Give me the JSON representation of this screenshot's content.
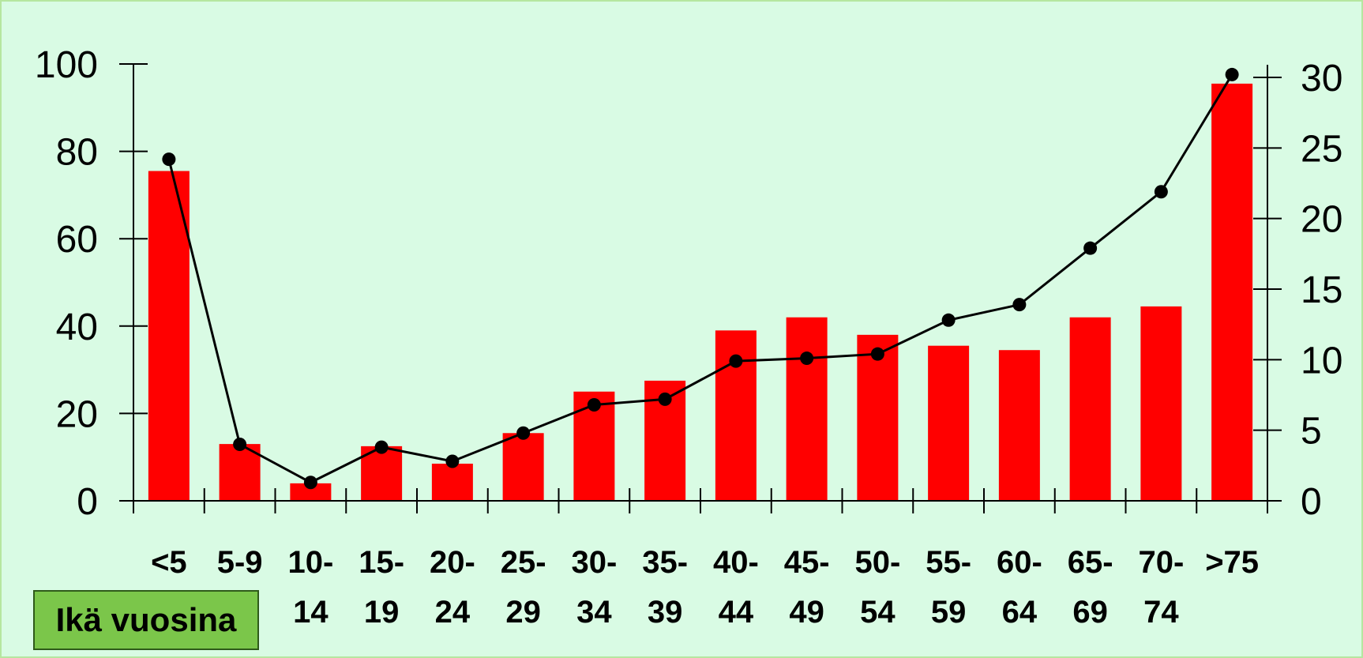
{
  "chart_data": {
    "type": "bar",
    "categories": [
      "<5",
      "5-9",
      "10-14",
      "15-19",
      "20-24",
      "25-29",
      "30-34",
      "35-39",
      "40-44",
      "45-49",
      "50-54",
      "55-59",
      "60-64",
      "65-69",
      "70-74",
      ">75"
    ],
    "category_labels": [
      [
        "<5",
        ""
      ],
      [
        "5-9",
        ""
      ],
      [
        "10-",
        "14"
      ],
      [
        "15-",
        "19"
      ],
      [
        "20-",
        "24"
      ],
      [
        "25-",
        "29"
      ],
      [
        "30-",
        "34"
      ],
      [
        "35-",
        "39"
      ],
      [
        "40-",
        "44"
      ],
      [
        "45-",
        "49"
      ],
      [
        "50-",
        "54"
      ],
      [
        "55-",
        "59"
      ],
      [
        "60-",
        "64"
      ],
      [
        "65-",
        "69"
      ],
      [
        "70-",
        "74"
      ],
      [
        ">75",
        ""
      ]
    ],
    "series": [
      {
        "type": "bar",
        "axis": "left",
        "color": "#ff0000",
        "values": [
          75.5,
          13,
          4,
          12.5,
          8.5,
          15.5,
          25,
          27.5,
          39,
          42,
          38,
          35.5,
          34.5,
          42,
          44.5,
          95.5
        ]
      },
      {
        "type": "line",
        "axis": "right",
        "color": "#000000",
        "values": [
          24.2,
          4,
          1.3,
          3.8,
          2.8,
          4.8,
          6.8,
          7.2,
          9.9,
          10.1,
          10.4,
          12.8,
          13.9,
          17.9,
          21.9,
          30.2
        ]
      }
    ],
    "yticks_left": [
      "0",
      "20",
      "40",
      "60",
      "80",
      "100"
    ],
    "ylim_left": [
      0,
      100
    ],
    "yticks_right": [
      "0",
      "5",
      "10",
      "15",
      "20",
      "25",
      "30"
    ],
    "ylim_right": [
      0,
      30
    ],
    "xlabel": "Ikä vuosina",
    "grid": false
  },
  "colors": {
    "background": "#d9fbe4",
    "bar": "#ff0000",
    "line": "#000000",
    "label_box": "#7bc64a"
  }
}
